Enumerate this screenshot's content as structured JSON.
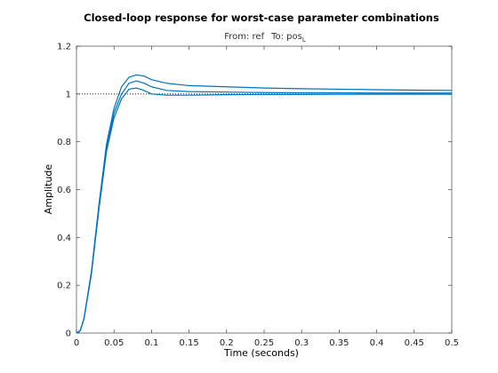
{
  "chart_data": {
    "type": "line",
    "title": "Closed-loop response for worst-case parameter combinations",
    "subtitle": {
      "from_label": "From: ref",
      "to_label": "To: pos",
      "to_subscript": "L"
    },
    "xlabel": "Time (seconds)",
    "ylabel": "Amplitude",
    "xlim": [
      0,
      0.5
    ],
    "ylim": [
      0,
      1.2
    ],
    "xticks": [
      0,
      0.05,
      0.1,
      0.15,
      0.2,
      0.25,
      0.3,
      0.35,
      0.4,
      0.45,
      0.5
    ],
    "xtick_labels": [
      "0",
      "0.05",
      "0.1",
      "0.15",
      "0.2",
      "0.25",
      "0.3",
      "0.35",
      "0.4",
      "0.45",
      "0.5"
    ],
    "yticks": [
      0,
      0.2,
      0.4,
      0.6,
      0.8,
      1,
      1.2
    ],
    "ytick_labels": [
      "0",
      "0.2",
      "0.4",
      "0.6",
      "0.8",
      "1",
      "1.2"
    ],
    "grid": false,
    "reference_line": {
      "y": 1,
      "style": "dotted"
    },
    "line_color": "#0072BD",
    "series": [
      {
        "x": [
          0,
          0.005,
          0.01,
          0.02,
          0.03,
          0.04,
          0.05,
          0.06,
          0.07,
          0.08,
          0.09,
          0.1,
          0.12,
          0.15,
          0.2,
          0.25,
          0.3,
          0.35,
          0.4,
          0.45,
          0.5
        ],
        "y": [
          0,
          0.01,
          0.06,
          0.25,
          0.52,
          0.76,
          0.9,
          0.98,
          1.02,
          1.025,
          1.015,
          1.0,
          0.995,
          0.995,
          0.997,
          0.998,
          0.998,
          0.999,
          0.999,
          0.999,
          0.999
        ]
      },
      {
        "x": [
          0,
          0.005,
          0.01,
          0.02,
          0.03,
          0.04,
          0.05,
          0.06,
          0.07,
          0.08,
          0.09,
          0.1,
          0.12,
          0.15,
          0.2,
          0.25,
          0.3,
          0.35,
          0.4,
          0.45,
          0.5
        ],
        "y": [
          0,
          0.01,
          0.06,
          0.25,
          0.53,
          0.77,
          0.92,
          1.0,
          1.045,
          1.055,
          1.045,
          1.03,
          1.015,
          1.01,
          1.008,
          1.006,
          1.005,
          1.005,
          1.004,
          1.004,
          1.004
        ]
      },
      {
        "x": [
          0,
          0.005,
          0.01,
          0.02,
          0.03,
          0.04,
          0.05,
          0.06,
          0.07,
          0.08,
          0.09,
          0.1,
          0.12,
          0.15,
          0.2,
          0.25,
          0.3,
          0.35,
          0.4,
          0.45,
          0.5
        ],
        "y": [
          0,
          0.01,
          0.06,
          0.26,
          0.54,
          0.79,
          0.94,
          1.03,
          1.07,
          1.08,
          1.075,
          1.06,
          1.045,
          1.035,
          1.03,
          1.025,
          1.022,
          1.02,
          1.018,
          1.016,
          1.015
        ]
      }
    ]
  }
}
